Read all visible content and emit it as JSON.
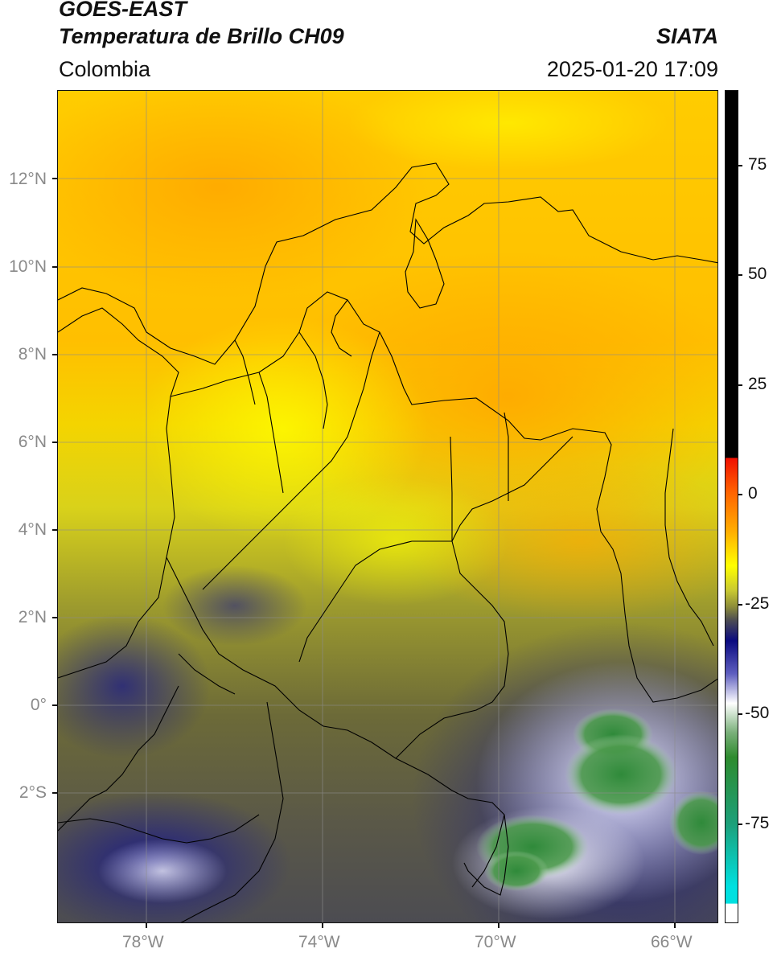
{
  "header": {
    "title_line1": "GOES-EAST",
    "title_line2": "Temperatura de Brillo CH09",
    "region": "Colombia",
    "brand": "SIATA",
    "timestamp": "2025-01-20 17:09"
  },
  "map": {
    "lat_labels": [
      "12°N",
      "10°N",
      "8°N",
      "6°N",
      "4°N",
      "2°N",
      "0°",
      "2°S"
    ],
    "lon_labels": [
      "78°W",
      "74°W",
      "70°W",
      "66°W"
    ],
    "lat_values": [
      12,
      10,
      8,
      6,
      4,
      2,
      0,
      -2
    ],
    "lon_values": [
      -78,
      -74,
      -70,
      -66
    ],
    "extent": {
      "lon_min": -80,
      "lon_max": -65,
      "lat_min": -5,
      "lat_max": 14
    }
  },
  "colorbar": {
    "tick_labels": [
      "75",
      "50",
      "25",
      "0",
      "-25",
      "-50",
      "-75"
    ],
    "tick_values": [
      75,
      50,
      25,
      0,
      -25,
      -50,
      -75
    ],
    "range": [
      -100,
      90
    ],
    "colors": {
      "black_top": "#000000",
      "red": "#e82000",
      "orange": "#ffa500",
      "yellow": "#ffff00",
      "olive": "#8a8a2a",
      "gray": "#4a4a52",
      "navy": "#0a0a80",
      "white": "#ffffff",
      "green": "#2e8b2e",
      "cyan": "#00dcd8"
    }
  }
}
